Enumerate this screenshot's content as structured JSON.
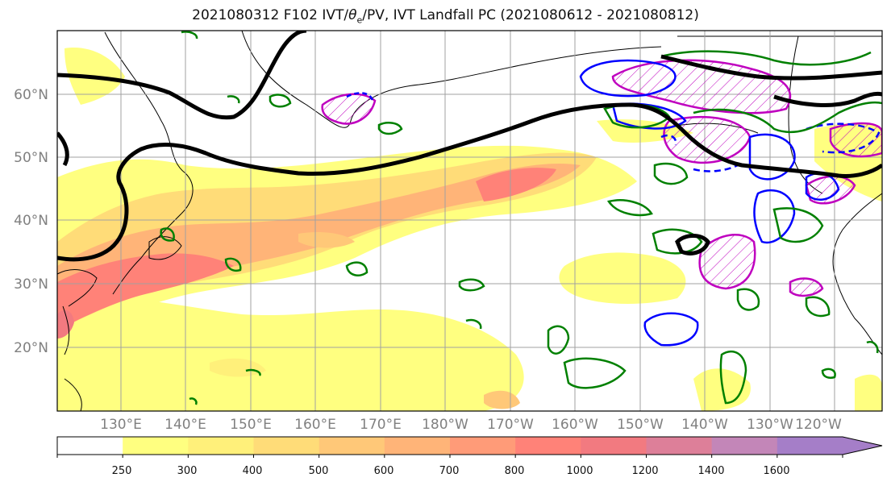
{
  "title": {
    "prefix": "2021080312 F102 IVT/",
    "theta": "θ",
    "theta_sub": "e",
    "suffix": "/PV, IVT Landfall PC (2021080612 - 2021080812)"
  },
  "map": {
    "lat_labels": [
      "60°N",
      "50°N",
      "40°N",
      "30°N",
      "20°N"
    ],
    "lon_labels": [
      "130°E",
      "140°E",
      "150°E",
      "160°E",
      "170°E",
      "180°W",
      "170°W",
      "160°W",
      "150°W",
      "140°W",
      "130°W",
      "120°W"
    ],
    "contour_colors": {
      "pv": "#000000",
      "theta_e": "#008000",
      "blue": "#0000ff",
      "magenta": "#bf00bf"
    }
  },
  "colorbar": {
    "ticks": [
      "250",
      "300",
      "400",
      "500",
      "600",
      "700",
      "800",
      "1000",
      "1200",
      "1400",
      "1600"
    ],
    "colors": [
      "#ffffff",
      "#ffff80",
      "#fff07a",
      "#ffdc78",
      "#ffc878",
      "#ffb478",
      "#ff9b78",
      "#ff8278",
      "#f27a80",
      "#dd7f99",
      "#c386b8",
      "#a57ec8"
    ]
  }
}
